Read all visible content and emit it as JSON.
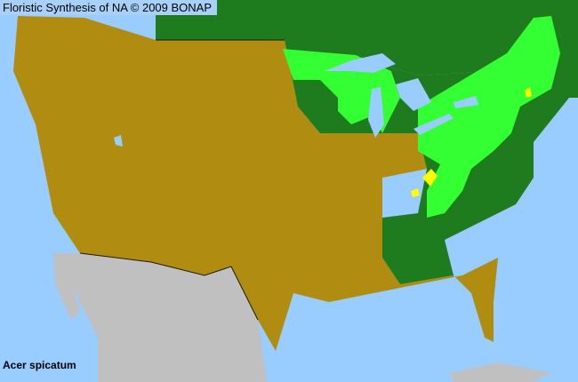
{
  "header": {
    "title": "Floristic Synthesis of NA © 2009 BONAP"
  },
  "map": {
    "species": "Acer spicatum",
    "colors": {
      "water": "#99ccff",
      "not_present": "#b08c10",
      "present_state": "#1e7b1e",
      "present_county": "#33ff33",
      "rare_county": "#ffff00",
      "outside_region": "#c0c0c0"
    }
  }
}
